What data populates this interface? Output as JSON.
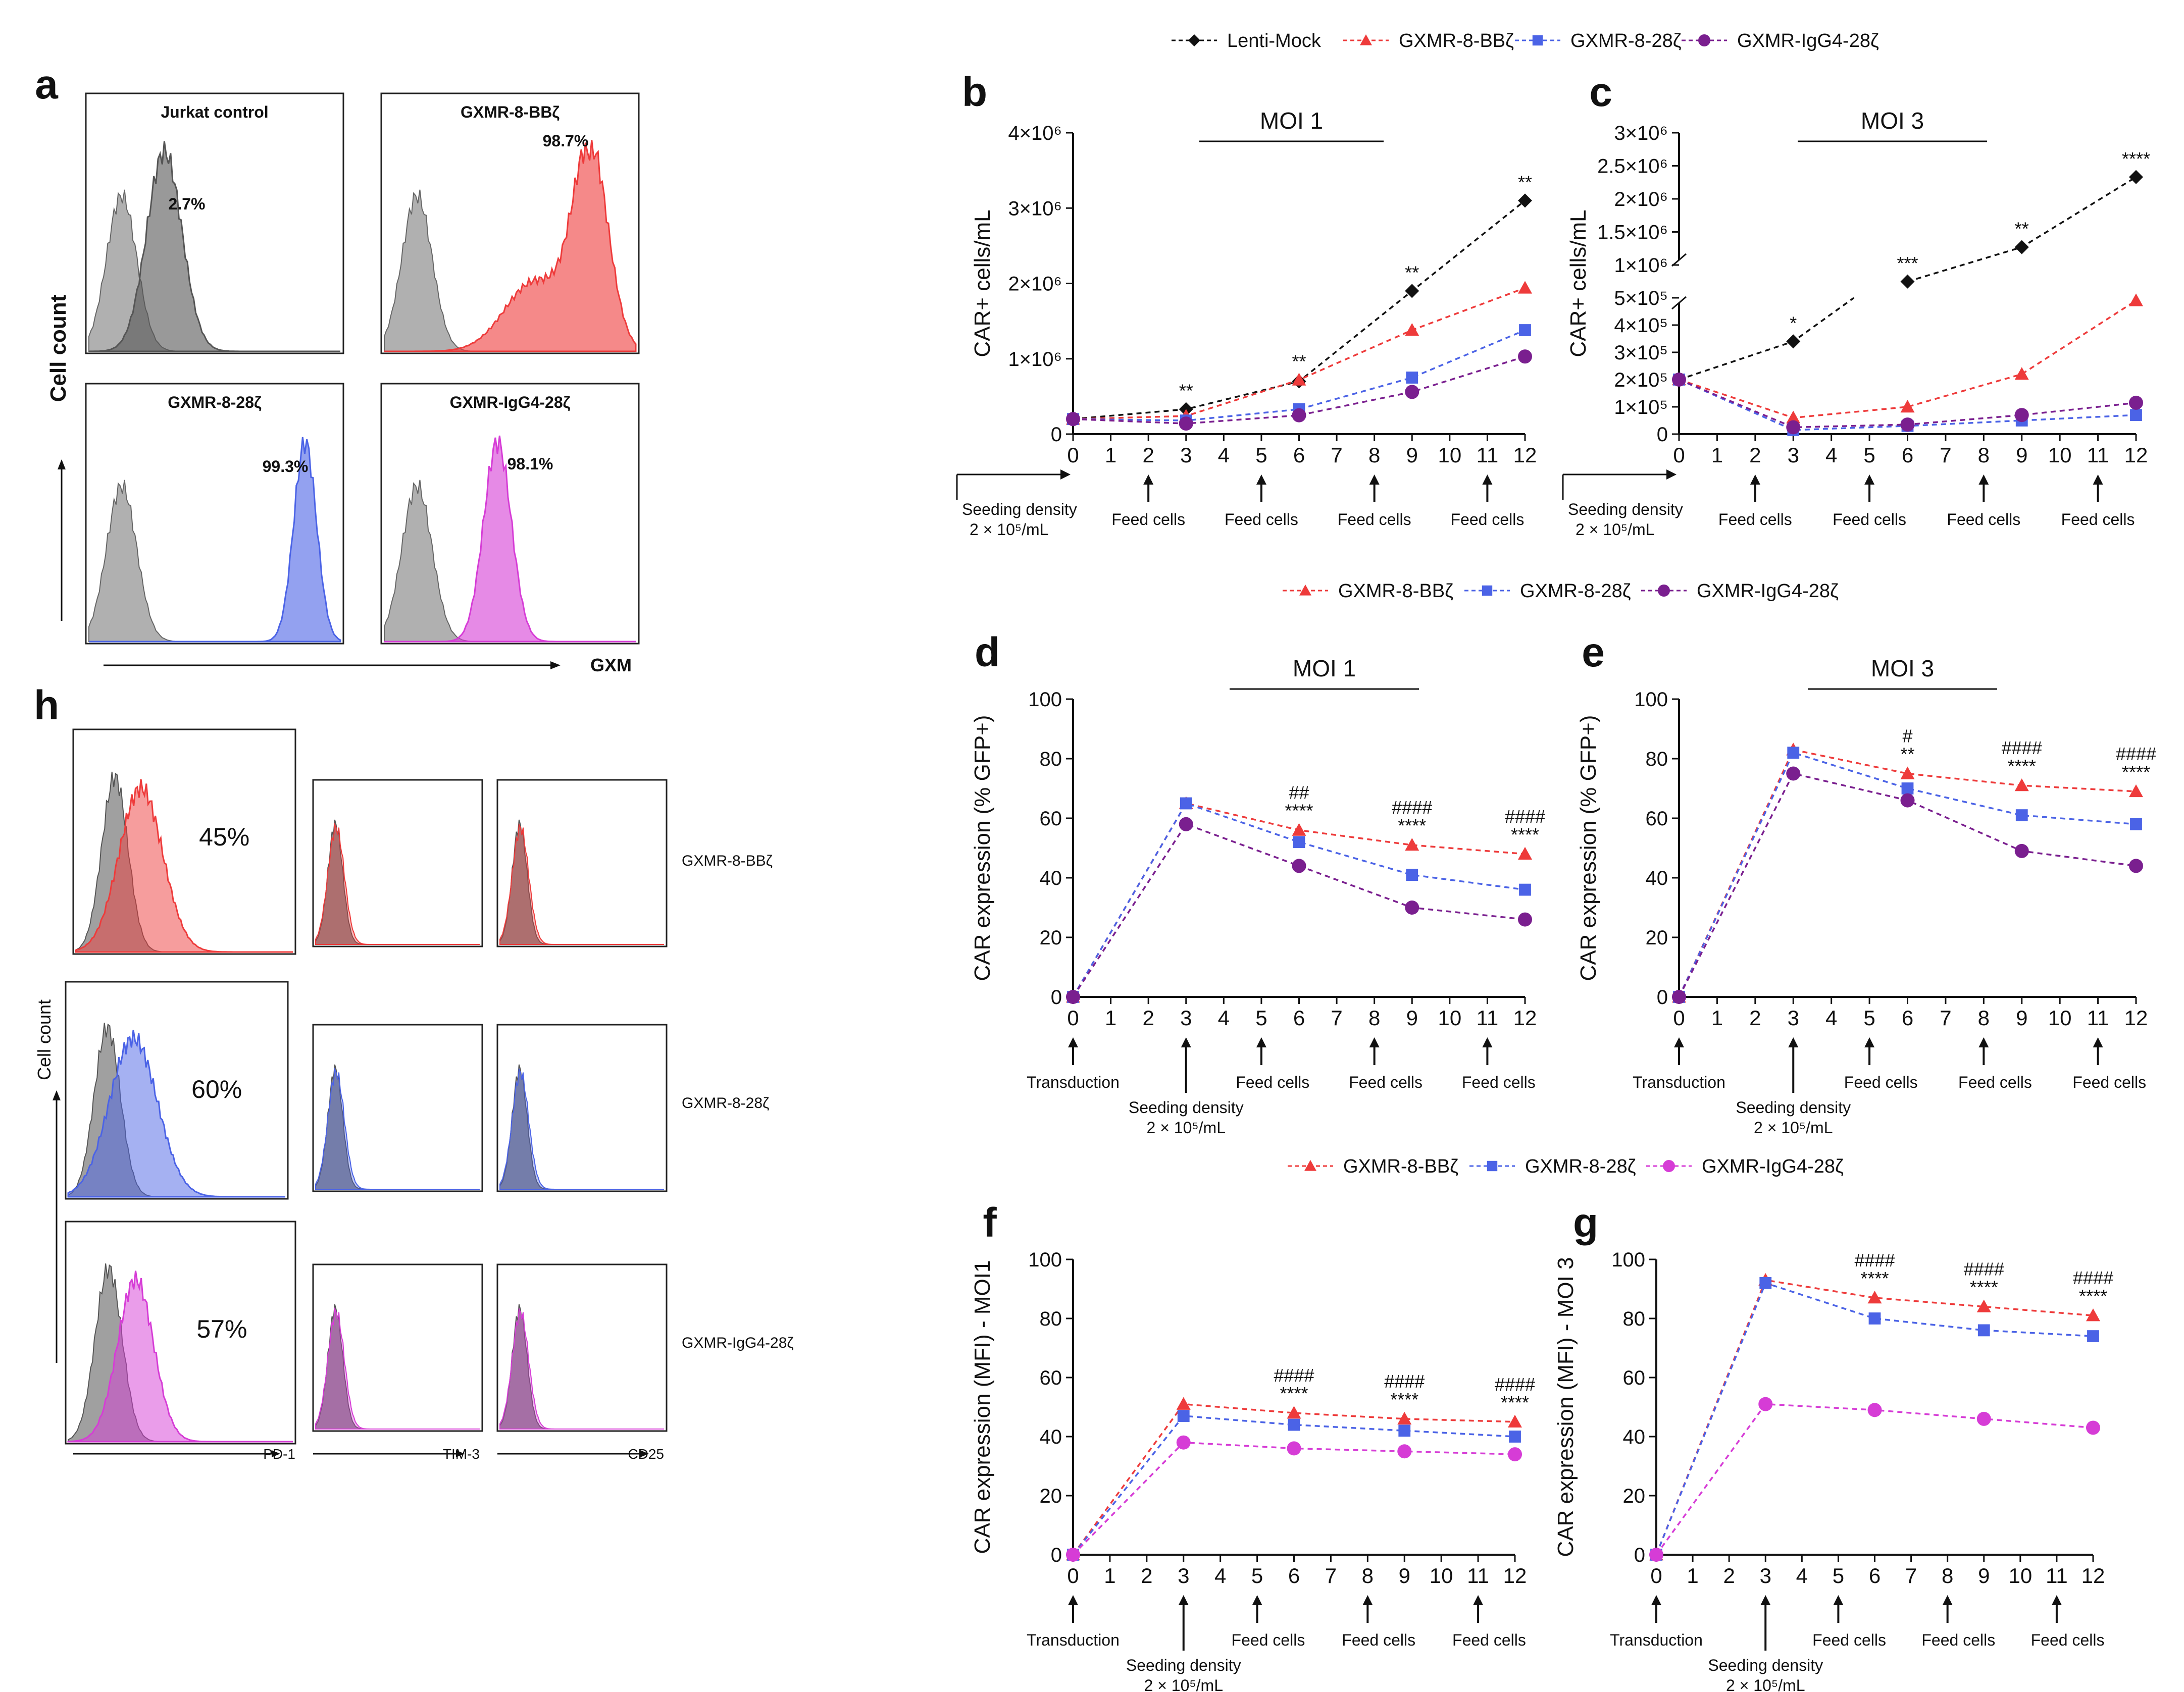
{
  "figure": {
    "legend_all": [
      "Lenti-Mock",
      "GXMR-8-BBζ",
      "GXMR-8-28ζ",
      "GXMR-IgG4-28ζ"
    ],
    "legend_three": [
      "GXMR-8-BBζ",
      "GXMR-8-28ζ",
      "GXMR-IgG4-28ζ"
    ],
    "colors": {
      "mock": "#111111",
      "bb": "#ee3b3b",
      "c28": "#4b63e6",
      "igg_purple": "#7a1f8f",
      "igg_magenta": "#d63cd6",
      "grey": "#9b9b9b"
    },
    "x_ticks": [
      "0",
      "1",
      "2",
      "3",
      "4",
      "5",
      "6",
      "7",
      "8",
      "9",
      "10",
      "11",
      "12"
    ],
    "annotations": {
      "seeding": "Seeding density",
      "seeding_value": "2 × 10⁵/mL",
      "feed": "Feed cells",
      "transduction": "Transduction"
    }
  },
  "panel_a": {
    "letter": "a",
    "ylabel": "Cell count",
    "xlabel": "GXM",
    "histograms": [
      {
        "title": "Jurkat control",
        "percent": "2.7%"
      },
      {
        "title": "GXMR-8-BBζ",
        "percent": "98.7%"
      },
      {
        "title": "GXMR-8-28ζ",
        "percent": "99.3%"
      },
      {
        "title": "GXMR-IgG4-28ζ",
        "percent": "98.1%"
      }
    ]
  },
  "panel_h": {
    "letter": "h",
    "ylabel": "Cell count",
    "rows": [
      {
        "name": "GXMR-8-BBζ",
        "percent": "45%"
      },
      {
        "name": "GXMR-8-28ζ",
        "percent": "60%"
      },
      {
        "name": "GXMR-IgG4-28ζ",
        "percent": "57%"
      }
    ],
    "markers": [
      "PD-1",
      "TIM-3",
      "CD25"
    ]
  },
  "chart_data": [
    {
      "id": "b",
      "type": "line",
      "title": "MOI 1",
      "ylabel": "CAR+ cells/mL",
      "y_ticks": [
        "0",
        "1×10⁶",
        "2×10⁶",
        "3×10⁶",
        "4×10⁶"
      ],
      "ylim": [
        0,
        4000000
      ],
      "x": [
        0,
        3,
        6,
        9,
        12
      ],
      "series": [
        {
          "name": "Lenti-Mock",
          "values": [
            200000,
            330000,
            700000,
            1900000,
            3100000
          ]
        },
        {
          "name": "GXMR-8-BBζ",
          "values": [
            200000,
            240000,
            720000,
            1380000,
            1940000
          ]
        },
        {
          "name": "GXMR-8-28ζ",
          "values": [
            200000,
            180000,
            330000,
            750000,
            1380000
          ]
        },
        {
          "name": "GXMR-IgG4-28ζ",
          "values": [
            200000,
            140000,
            250000,
            560000,
            1030000
          ]
        }
      ],
      "significance": [
        {
          "x": 3,
          "text": "**"
        },
        {
          "x": 6,
          "text": "**"
        },
        {
          "x": 9,
          "text": "**"
        },
        {
          "x": 12,
          "text": "**"
        }
      ]
    },
    {
      "id": "c",
      "type": "line",
      "title": "MOI 3",
      "ylabel": "CAR+ cells/mL",
      "broken_axis": true,
      "y_ticks_low": [
        "0",
        "1×10⁵",
        "2×10⁵",
        "3×10⁵",
        "4×10⁵",
        "5×10⁵"
      ],
      "y_ticks_high": [
        "1×10⁶",
        "1.5×10⁶",
        "2×10⁶",
        "2.5×10⁶",
        "3×10⁶"
      ],
      "x": [
        0,
        3,
        6,
        9,
        12
      ],
      "series": [
        {
          "name": "Lenti-Mock",
          "values": [
            200000,
            340000,
            750000,
            1270000,
            2330000
          ]
        },
        {
          "name": "GXMR-8-BBζ",
          "values": [
            200000,
            60000,
            100000,
            220000,
            490000
          ]
        },
        {
          "name": "GXMR-8-28ζ",
          "values": [
            200000,
            15000,
            30000,
            50000,
            70000
          ]
        },
        {
          "name": "GXMR-IgG4-28ζ",
          "values": [
            200000,
            25000,
            35000,
            70000,
            115000
          ]
        }
      ],
      "significance": [
        {
          "x": 3,
          "text": "*"
        },
        {
          "x": 6,
          "text": "***"
        },
        {
          "x": 9,
          "text": "**"
        },
        {
          "x": 12,
          "text": "****"
        }
      ]
    },
    {
      "id": "d",
      "type": "line",
      "title": "MOI 1",
      "ylabel": "CAR expression (% GFP+)",
      "y_ticks": [
        "0",
        "20",
        "40",
        "60",
        "80",
        "100"
      ],
      "ylim": [
        0,
        100
      ],
      "x": [
        0,
        3,
        6,
        9,
        12
      ],
      "series": [
        {
          "name": "GXMR-8-BBζ",
          "values": [
            0,
            65,
            56,
            51,
            48
          ]
        },
        {
          "name": "GXMR-8-28ζ",
          "values": [
            0,
            65,
            52,
            41,
            36
          ]
        },
        {
          "name": "GXMR-IgG4-28ζ",
          "values": [
            0,
            58,
            44,
            30,
            26
          ]
        }
      ],
      "significance": [
        {
          "x": 6,
          "hash": "##",
          "stars": "****"
        },
        {
          "x": 9,
          "hash": "####",
          "stars": "****"
        },
        {
          "x": 12,
          "hash": "####",
          "stars": "****"
        }
      ]
    },
    {
      "id": "e",
      "type": "line",
      "title": "MOI 3",
      "ylabel": "CAR expression (% GFP+)",
      "y_ticks": [
        "0",
        "20",
        "40",
        "60",
        "80",
        "100"
      ],
      "ylim": [
        0,
        100
      ],
      "x": [
        0,
        3,
        6,
        9,
        12
      ],
      "series": [
        {
          "name": "GXMR-8-BBζ",
          "values": [
            0,
            83,
            75,
            71,
            69
          ]
        },
        {
          "name": "GXMR-8-28ζ",
          "values": [
            0,
            82,
            70,
            61,
            58
          ]
        },
        {
          "name": "GXMR-IgG4-28ζ",
          "values": [
            0,
            75,
            66,
            49,
            44
          ]
        }
      ],
      "significance": [
        {
          "x": 6,
          "hash": "#",
          "stars": "**"
        },
        {
          "x": 9,
          "hash": "####",
          "stars": "****"
        },
        {
          "x": 12,
          "hash": "####",
          "stars": "****"
        }
      ]
    },
    {
      "id": "f",
      "type": "line",
      "title": "",
      "ylabel": "CAR expression (MFI) - MOI1",
      "y_ticks": [
        "0",
        "20",
        "40",
        "60",
        "80",
        "100"
      ],
      "ylim": [
        0,
        100
      ],
      "x": [
        0,
        3,
        6,
        9,
        12
      ],
      "series": [
        {
          "name": "GXMR-8-BBζ",
          "values": [
            0,
            51,
            48,
            46,
            45
          ]
        },
        {
          "name": "GXMR-8-28ζ",
          "values": [
            0,
            47,
            44,
            42,
            40
          ]
        },
        {
          "name": "GXMR-IgG4-28ζ",
          "values": [
            0,
            38,
            36,
            35,
            34
          ]
        }
      ],
      "significance": [
        {
          "x": 6,
          "hash": "####",
          "stars": "****"
        },
        {
          "x": 9,
          "hash": "####",
          "stars": "****"
        },
        {
          "x": 12,
          "hash": "####",
          "stars": "****"
        }
      ]
    },
    {
      "id": "g",
      "type": "line",
      "title": "",
      "ylabel": "CAR expression (MFI) - MOI 3",
      "y_ticks": [
        "0",
        "20",
        "40",
        "60",
        "80",
        "100"
      ],
      "ylim": [
        0,
        100
      ],
      "x": [
        0,
        3,
        6,
        9,
        12
      ],
      "series": [
        {
          "name": "GXMR-8-BBζ",
          "values": [
            0,
            93,
            87,
            84,
            81
          ]
        },
        {
          "name": "GXMR-8-28ζ",
          "values": [
            0,
            92,
            80,
            76,
            74
          ]
        },
        {
          "name": "GXMR-IgG4-28ζ",
          "values": [
            0,
            51,
            49,
            46,
            43
          ]
        }
      ],
      "significance": [
        {
          "x": 6,
          "hash": "####",
          "stars": "****"
        },
        {
          "x": 9,
          "hash": "####",
          "stars": "****"
        },
        {
          "x": 12,
          "hash": "####",
          "stars": "****"
        }
      ]
    }
  ]
}
